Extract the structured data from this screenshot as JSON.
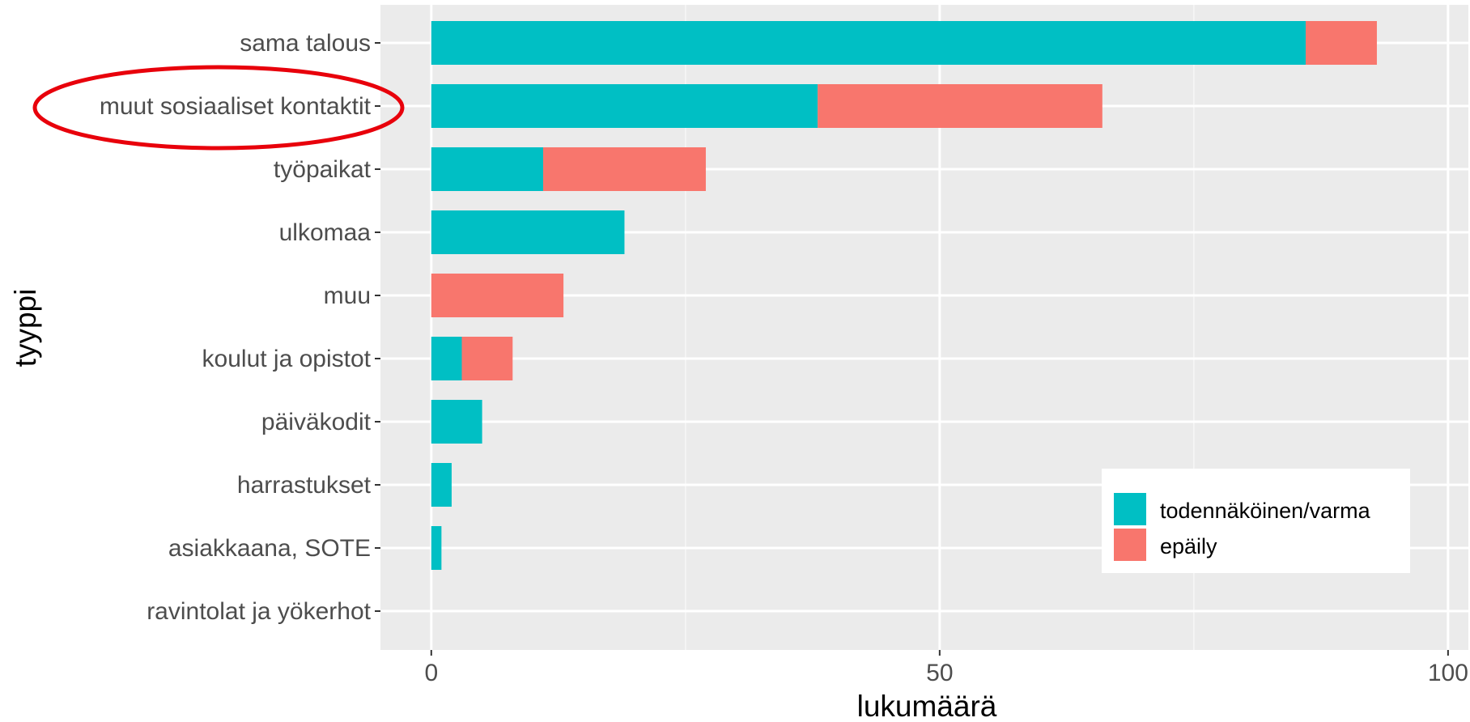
{
  "chart_data": {
    "type": "bar",
    "orientation": "horizontal",
    "stacked": true,
    "xlabel": "lukumäärä",
    "ylabel": "tyyppi",
    "xlim": [
      -5,
      102
    ],
    "x_ticks": [
      0,
      50,
      100
    ],
    "x_minor_ticks": [
      25,
      75
    ],
    "grid": true,
    "legend_position": "bottom-right",
    "categories": [
      "sama talous",
      "muut sosiaaliset kontaktit",
      "työpaikat",
      "ulkomaa",
      "muu",
      "koulut ja opistot",
      "päiväkodit",
      "harrastukset",
      "asiakkaana, SOTE",
      "ravintolat ja yökerhot"
    ],
    "series": [
      {
        "name": "todennäköinen/varma",
        "color": "#00BFC4",
        "values": [
          86,
          38,
          11,
          19,
          0,
          3,
          5,
          2,
          1,
          0
        ]
      },
      {
        "name": "epäily",
        "color": "#F8766D",
        "values": [
          7,
          28,
          16,
          0,
          13,
          5,
          0,
          0,
          0,
          0
        ]
      }
    ],
    "highlight": {
      "category": "muut sosiaaliset kontaktit",
      "shape": "ellipse",
      "color": "#e8000b"
    }
  }
}
